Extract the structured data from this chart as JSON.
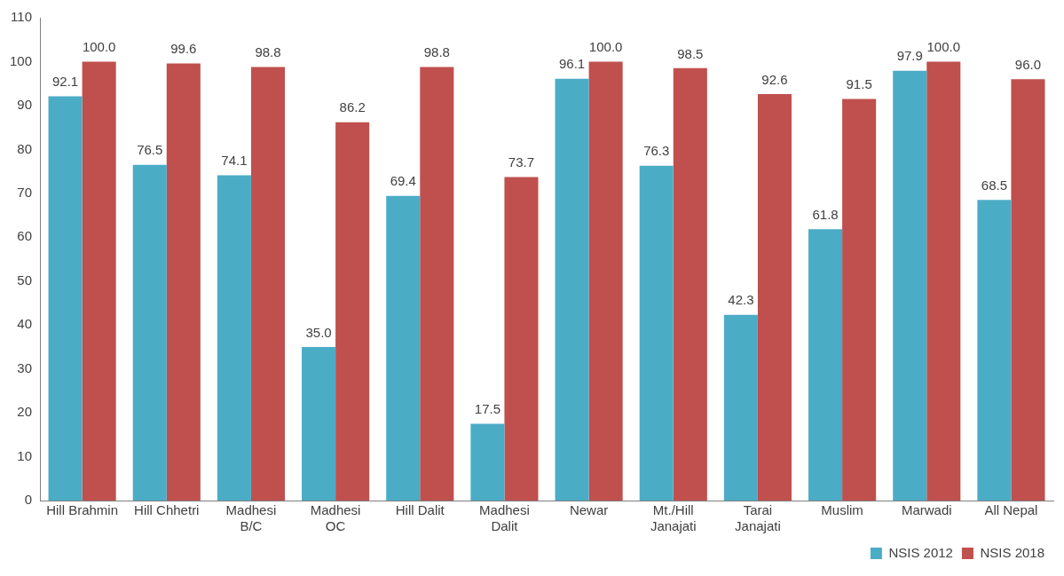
{
  "chart_data": {
    "type": "bar",
    "categories": [
      "Hill Brahmin",
      "Hill Chhetri",
      "Madhesi\nB/C",
      "Madhesi\nOC",
      "Hill Dalit",
      "Madhesi\nDalit",
      "Newar",
      "Mt./Hill\nJanajati",
      "Tarai\nJanajati",
      "Muslim",
      "Marwadi",
      "All Nepal"
    ],
    "series": [
      {
        "name": "NSIS 2012",
        "color": "#4bacc6",
        "values": [
          92.1,
          76.5,
          74.1,
          35.0,
          69.4,
          17.5,
          96.1,
          76.3,
          42.3,
          61.8,
          97.9,
          68.5
        ],
        "value_labels": [
          "92.1",
          "76.5",
          "74.1",
          "35.0",
          "69.4",
          "17.5",
          "96.1",
          "76.3",
          "42.3",
          "61.8",
          "97.9",
          "68.5"
        ]
      },
      {
        "name": "NSIS 2018",
        "color": "#c0504d",
        "values": [
          100.0,
          99.6,
          98.8,
          86.2,
          98.8,
          73.7,
          100.0,
          98.5,
          92.6,
          91.5,
          100.0,
          96.0
        ],
        "value_labels": [
          "100.0",
          "99.6",
          "98.8",
          "86.2",
          "98.8",
          "73.7",
          "100.0",
          "98.5",
          "92.6",
          "91.5",
          "100.0",
          "96.0"
        ]
      }
    ],
    "ylim": [
      0,
      110
    ],
    "yticks": [
      0,
      10,
      20,
      30,
      40,
      50,
      60,
      70,
      80,
      90,
      100,
      110
    ],
    "grid": false,
    "legend": "bottom right"
  }
}
